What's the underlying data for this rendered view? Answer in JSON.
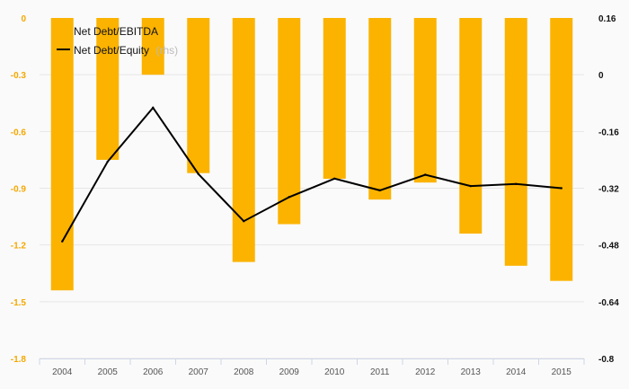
{
  "chart_data": {
    "type": "bar",
    "categories": [
      "2004",
      "2005",
      "2006",
      "2007",
      "2008",
      "2009",
      "2010",
      "2011",
      "2012",
      "2013",
      "2014",
      "2015"
    ],
    "series": [
      {
        "name": "Net Debt/EBITDA",
        "type": "bar",
        "axis": "left",
        "color": "#fbb300",
        "values": [
          -1.44,
          -0.75,
          -0.3,
          -0.82,
          -1.29,
          -1.09,
          -0.85,
          -0.96,
          -0.87,
          -1.14,
          -1.31,
          -1.39
        ]
      },
      {
        "name": "Net Debt/Equity",
        "type": "line",
        "axis": "right",
        "color": "#000000",
        "values": [
          -0.47,
          -0.245,
          -0.093,
          -0.28,
          -0.413,
          -0.345,
          -0.293,
          -0.326,
          -0.282,
          -0.314,
          -0.308,
          -0.32
        ]
      }
    ],
    "legend_rhs_suffix": "(rhs)",
    "left_axis": {
      "min": -1.8,
      "max": 0,
      "ticks": [
        0,
        -0.3,
        -0.6,
        -0.9,
        -1.2,
        -1.5,
        -1.8
      ],
      "tick_labels": [
        "0",
        "-0.3",
        "-0.6",
        "-0.9",
        "-1.2",
        "-1.5",
        "-1.8"
      ],
      "color": "#f5a800"
    },
    "right_axis": {
      "min": -0.8,
      "max": 0.16,
      "ticks": [
        0.16,
        0,
        -0.16,
        -0.32,
        -0.48,
        -0.64,
        -0.8
      ],
      "tick_labels": [
        "0.16",
        "0",
        "-0.16",
        "-0.32",
        "-0.48",
        "-0.64",
        "-0.8"
      ],
      "color": "#111111"
    },
    "grid": true,
    "legend_position": "top-left"
  }
}
